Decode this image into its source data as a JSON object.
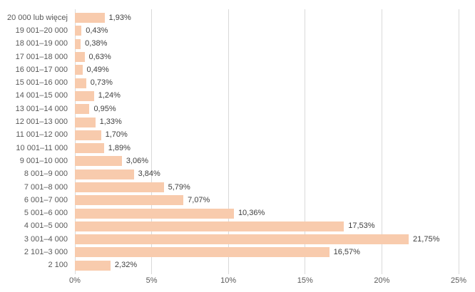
{
  "chart_data": {
    "type": "bar",
    "orientation": "horizontal",
    "title": "",
    "xlabel": "",
    "ylabel": "",
    "categories": [
      "20 000 lub więcej",
      "19 001–20 000",
      "18 001–19 000",
      "17 001–18 000",
      "16 001–17 000",
      "15 001–16 000",
      "14 001–15 000",
      "13 001–14 000",
      "12 001–13 000",
      "11 001–12 000",
      "10 001–11 000",
      "9 001–10 000",
      "8 001–9 000",
      "7 001–8 000",
      "6 001–7 000",
      "5 001–6 000",
      "4 001–5 000",
      "3 001–4 000",
      "2 101–3 000",
      "2 100"
    ],
    "values": [
      1.93,
      0.43,
      0.38,
      0.63,
      0.49,
      0.73,
      1.24,
      0.95,
      1.33,
      1.7,
      1.89,
      3.06,
      3.84,
      5.79,
      7.07,
      10.36,
      17.53,
      21.75,
      16.57,
      2.32
    ],
    "value_labels": [
      "1,93%",
      "0,43%",
      "0,38%",
      "0,63%",
      "0,49%",
      "0,73%",
      "1,24%",
      "0,95%",
      "1,33%",
      "1,70%",
      "1,89%",
      "3,06%",
      "3,84%",
      "5,79%",
      "7,07%",
      "10,36%",
      "17,53%",
      "21,75%",
      "16,57%",
      "2,32%"
    ],
    "xlim": [
      0,
      25
    ],
    "x_ticks": [
      0,
      5,
      10,
      15,
      20,
      25
    ],
    "x_tick_labels": [
      "0%",
      "5%",
      "10%",
      "15%",
      "20%",
      "25%"
    ],
    "grid": true,
    "legend": false,
    "colors": {
      "bar_fill": "#F8CBAD",
      "gridline": "#D9D9D9",
      "axis_line": "#D9D9D9",
      "category_label": "#595959",
      "tick_label": "#595959",
      "data_label": "#404040",
      "background": "#FFFFFF"
    }
  }
}
